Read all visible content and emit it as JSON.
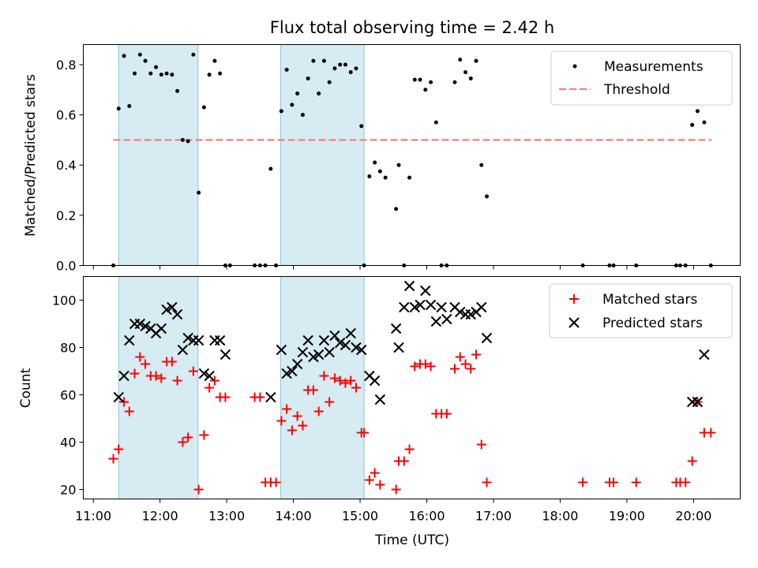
{
  "chart_data": [
    {
      "type": "scatter",
      "title": "Flux total observing time = 2.42 h",
      "xlabel": "",
      "ylabel": "Matched/Predicted stars",
      "xlim": [
        10.85,
        20.7
      ],
      "ylim": [
        0,
        0.88
      ],
      "xticks": [
        11,
        12,
        13,
        14,
        15,
        16,
        17,
        18,
        19,
        20
      ],
      "yticks": [
        0.0,
        0.2,
        0.4,
        0.6,
        0.8
      ],
      "ytick_labels": [
        "0.0",
        "0.2",
        "0.4",
        "0.6",
        "0.8"
      ],
      "observing_windows": [
        [
          11.38,
          12.57
        ],
        [
          13.81,
          15.06
        ]
      ],
      "threshold": {
        "name": "Threshold",
        "value": 0.5,
        "x_range": [
          11.3,
          20.27
        ],
        "color": "#f08080"
      },
      "series": [
        {
          "name": "Measurements",
          "marker": "dot",
          "color": "#000000",
          "x": [
            11.3,
            11.38,
            11.46,
            11.54,
            11.62,
            11.7,
            11.78,
            11.86,
            11.94,
            12.02,
            12.1,
            12.18,
            12.26,
            12.34,
            12.42,
            12.5,
            12.58,
            12.66,
            12.74,
            12.82,
            12.9,
            12.98,
            13.05,
            13.42,
            13.5,
            13.58,
            13.66,
            13.74,
            13.82,
            13.9,
            13.98,
            14.06,
            14.14,
            14.22,
            14.3,
            14.38,
            14.46,
            14.54,
            14.62,
            14.7,
            14.78,
            14.86,
            14.94,
            15.02,
            15.06,
            15.14,
            15.22,
            15.3,
            15.38,
            15.54,
            15.58,
            15.66,
            15.74,
            15.82,
            15.9,
            15.98,
            16.06,
            16.14,
            16.22,
            16.3,
            16.42,
            16.5,
            16.58,
            16.66,
            16.74,
            16.82,
            16.9,
            18.34,
            18.74,
            18.8,
            19.14,
            19.74,
            19.8,
            19.88,
            19.98,
            20.06,
            20.16,
            20.26
          ],
          "y": [
            0,
            0.625,
            0.835,
            0.635,
            0.765,
            0.84,
            0.815,
            0.765,
            0.79,
            0.76,
            0.765,
            0.76,
            0.695,
            0.5,
            0.495,
            0.84,
            0.29,
            0.63,
            0.76,
            0.815,
            0.765,
            0,
            0,
            0,
            0,
            0,
            0.385,
            0,
            0.615,
            0.78,
            0.64,
            0.685,
            0.6,
            0.745,
            0.815,
            0.685,
            0.815,
            0.73,
            0.785,
            0.8,
            0.8,
            0.77,
            0.785,
            0.555,
            0,
            0.355,
            0.41,
            0.375,
            0.35,
            0.225,
            0.4,
            0,
            0.35,
            0.74,
            0.74,
            0.7,
            0.73,
            0.57,
            0,
            0,
            0.73,
            0.82,
            0.77,
            0.745,
            0.815,
            0.4,
            0.275,
            0,
            0,
            0,
            0,
            0,
            0,
            0,
            0.56,
            0.615,
            0.57,
            0
          ]
        }
      ],
      "legend": {
        "position": "top-right",
        "entries": [
          "Measurements",
          "Threshold"
        ]
      }
    },
    {
      "type": "scatter",
      "title": "",
      "xlabel": "Time (UTC)",
      "ylabel": "Count",
      "xlim": [
        10.85,
        20.7
      ],
      "ylim": [
        16,
        110
      ],
      "xticks": [
        11,
        12,
        13,
        14,
        15,
        16,
        17,
        18,
        19,
        20
      ],
      "xtick_labels": [
        "11:00",
        "12:00",
        "13:00",
        "14:00",
        "15:00",
        "16:00",
        "17:00",
        "18:00",
        "19:00",
        "20:00"
      ],
      "yticks": [
        20,
        40,
        60,
        80,
        100
      ],
      "ytick_labels": [
        "20",
        "40",
        "60",
        "80",
        "100"
      ],
      "observing_windows": [
        [
          11.38,
          12.57
        ],
        [
          13.81,
          15.06
        ]
      ],
      "series": [
        {
          "name": "Matched stars",
          "marker": "plus",
          "color": "#ff0000",
          "x": [
            11.3,
            11.38,
            11.46,
            11.54,
            11.62,
            11.7,
            11.78,
            11.86,
            11.94,
            12.02,
            12.1,
            12.18,
            12.26,
            12.34,
            12.42,
            12.5,
            12.58,
            12.66,
            12.74,
            12.82,
            12.9,
            12.98,
            13.42,
            13.5,
            13.58,
            13.66,
            13.74,
            13.82,
            13.9,
            13.98,
            14.06,
            14.14,
            14.22,
            14.3,
            14.38,
            14.46,
            14.54,
            14.62,
            14.7,
            14.78,
            14.86,
            14.94,
            15.02,
            15.06,
            15.14,
            15.22,
            15.3,
            15.54,
            15.58,
            15.66,
            15.74,
            15.82,
            15.9,
            15.98,
            16.06,
            16.14,
            16.22,
            16.3,
            16.42,
            16.5,
            16.58,
            16.66,
            16.74,
            16.82,
            16.9,
            18.34,
            18.74,
            18.8,
            19.14,
            19.74,
            19.8,
            19.88,
            19.98,
            20.06,
            20.16,
            20.26
          ],
          "y": [
            33,
            37,
            57,
            53,
            69,
            76,
            73,
            68,
            68,
            67,
            74,
            74,
            66,
            40,
            42,
            70,
            20,
            43,
            63,
            66,
            59,
            59,
            59,
            59,
            23,
            23,
            23,
            49,
            54,
            45,
            51,
            47,
            62,
            62,
            53,
            68,
            57,
            67,
            66,
            65,
            66,
            63,
            44,
            44,
            24,
            27,
            22,
            20,
            32,
            32,
            37,
            72,
            73,
            73,
            72,
            52,
            52,
            52,
            71,
            76,
            73,
            71,
            77,
            39,
            23,
            23,
            23,
            23,
            23,
            23,
            23,
            23,
            32,
            57,
            44,
            44
          ]
        },
        {
          "name": "Predicted stars",
          "marker": "x",
          "color": "#000000",
          "x": [
            11.38,
            11.46,
            11.54,
            11.62,
            11.7,
            11.78,
            11.86,
            11.94,
            12.02,
            12.1,
            12.18,
            12.26,
            12.34,
            12.42,
            12.5,
            12.58,
            12.66,
            12.74,
            12.82,
            12.9,
            12.98,
            13.66,
            13.82,
            13.9,
            13.98,
            14.06,
            14.14,
            14.22,
            14.3,
            14.38,
            14.46,
            14.54,
            14.62,
            14.7,
            14.78,
            14.86,
            14.94,
            15.02,
            15.14,
            15.22,
            15.3,
            15.54,
            15.58,
            15.66,
            15.74,
            15.82,
            15.9,
            15.98,
            16.06,
            16.14,
            16.22,
            16.3,
            16.42,
            16.5,
            16.58,
            16.66,
            16.74,
            16.82,
            16.9,
            19.98,
            20.06,
            20.16
          ],
          "y": [
            59,
            68,
            83,
            90,
            90,
            89,
            88,
            86,
            88,
            96,
            97,
            94,
            79,
            84,
            83,
            83,
            69,
            68,
            83,
            83,
            77,
            59,
            79,
            69,
            70,
            73,
            78,
            83,
            76,
            77,
            83,
            78,
            85,
            82,
            81,
            86,
            80,
            79,
            68,
            66,
            58,
            88,
            80,
            97,
            106,
            97,
            98,
            104,
            98,
            91,
            97,
            92,
            97,
            95,
            94,
            94,
            95,
            97,
            84,
            57,
            57,
            77
          ]
        }
      ],
      "legend": {
        "position": "top-right",
        "entries": [
          "Matched stars",
          "Predicted stars"
        ]
      }
    }
  ]
}
